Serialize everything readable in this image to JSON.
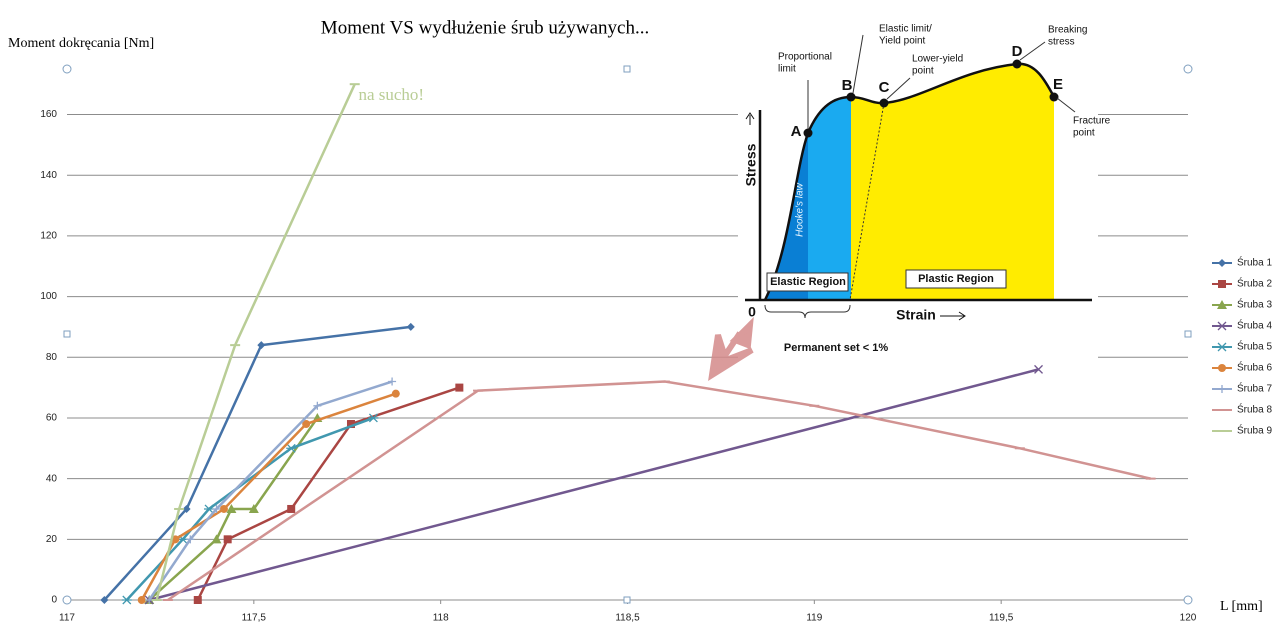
{
  "chart_data": {
    "type": "line",
    "title": "Moment VS wydłużenie śrub używanych...",
    "y_label": "Moment dokręcania [Nm]",
    "x_label": "L [mm]",
    "xlim": [
      117,
      120
    ],
    "ylim": [
      0,
      175
    ],
    "xticks": [
      117,
      {
        "value": 117.5,
        "label": "117,5"
      },
      118,
      {
        "value": 118.5,
        "label": "118,5"
      },
      119,
      {
        "value": 119.5,
        "label": "119,5"
      },
      120
    ],
    "yticks": [
      0,
      20,
      40,
      60,
      80,
      100,
      120,
      140,
      160
    ],
    "grid": true,
    "legend": "right",
    "annotations": [
      {
        "text": "na sucho!",
        "x": 117.78,
        "y": 166
      }
    ],
    "series": [
      {
        "name": "Śruba 1",
        "color": "#4572a7",
        "marker": "diamond",
        "x": [
          117.1,
          117.32,
          117.52,
          117.92
        ],
        "values": [
          0,
          30,
          84,
          90
        ]
      },
      {
        "name": "Śruba 2",
        "color": "#aa4643",
        "marker": "square",
        "x": [
          117.35,
          117.43,
          117.6,
          117.76,
          118.05
        ],
        "values": [
          0,
          20,
          30,
          58,
          70
        ]
      },
      {
        "name": "Śruba 3",
        "color": "#89a54e",
        "marker": "triangle",
        "x": [
          117.22,
          117.4,
          117.44,
          117.5,
          117.67
        ],
        "values": [
          0,
          20,
          30,
          30,
          60
        ]
      },
      {
        "name": "Śruba 4",
        "color": "#71588f",
        "marker": "x",
        "x": [
          117.22,
          119.6
        ],
        "values": [
          0,
          76
        ]
      },
      {
        "name": "Śruba 5",
        "color": "#4198af",
        "marker": "star",
        "x": [
          117.16,
          117.31,
          117.38,
          117.6,
          117.82
        ],
        "values": [
          0,
          20,
          30,
          50,
          60
        ]
      },
      {
        "name": "Śruba 6",
        "color": "#db843d",
        "marker": "circle",
        "x": [
          117.2,
          117.29,
          117.42,
          117.64,
          117.88
        ],
        "values": [
          0,
          20,
          30,
          58,
          68
        ]
      },
      {
        "name": "Śruba 7",
        "color": "#93a9cf",
        "marker": "plus",
        "x": [
          117.22,
          117.33,
          117.4,
          117.67,
          117.87
        ],
        "values": [
          0,
          20,
          30,
          64,
          72
        ]
      },
      {
        "name": "Śruba 8",
        "color": "#d19392",
        "marker": "dash",
        "x": [
          117.27,
          118.1,
          118.6,
          119.0,
          119.55,
          119.9
        ],
        "values": [
          0,
          69,
          72,
          64,
          50,
          40
        ]
      },
      {
        "name": "Śruba 9",
        "color": "#b9cd96",
        "marker": "dash",
        "x": [
          117.24,
          117.3,
          117.45,
          117.77
        ],
        "values": [
          0,
          30,
          84,
          170
        ]
      }
    ]
  },
  "inset": {
    "y_label": "Stress",
    "x_label": "Strain",
    "origin": "0",
    "points": [
      "A",
      "B",
      "C",
      "D",
      "E"
    ],
    "labels": {
      "proportional": [
        "Proportional",
        "limit"
      ],
      "elastic_limit": [
        "Elastic limit/",
        "Yield point"
      ],
      "lower_yield": [
        "Lower-yield",
        "point"
      ],
      "breaking": [
        "Breaking",
        "stress"
      ],
      "fracture": [
        "Fracture",
        "point"
      ]
    },
    "hooke": "Hooke's law",
    "elastic_region": "Elastic Region",
    "plastic_region": "Plastic Region",
    "permanent_set": "Permanent set < 1%"
  }
}
